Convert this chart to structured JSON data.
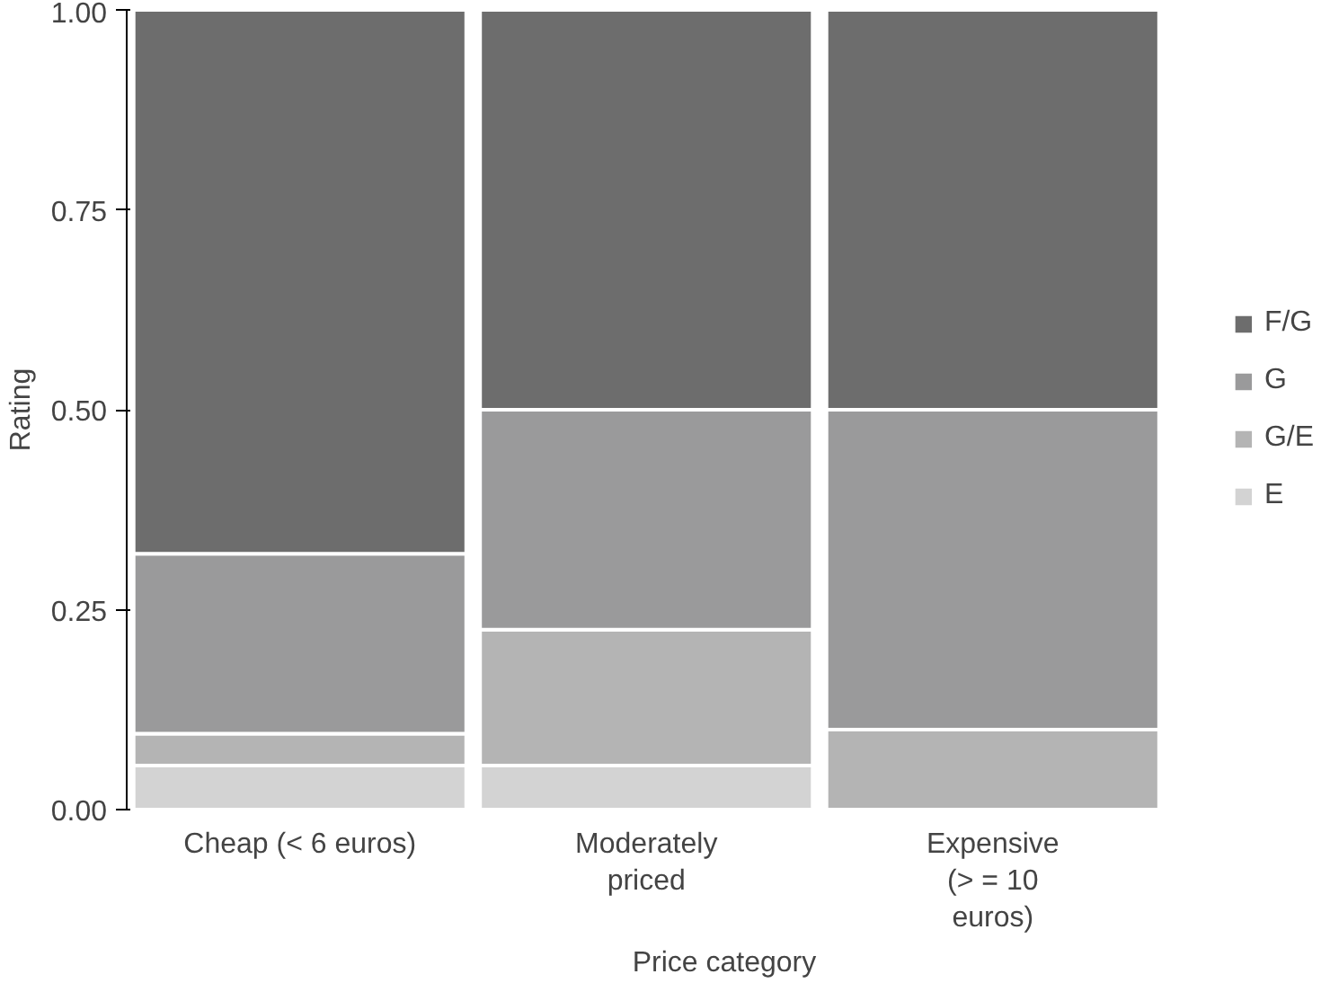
{
  "chart_data": {
    "type": "bar",
    "stacked": true,
    "xlabel": "Price category",
    "ylabel": "Rating",
    "categories": [
      "Cheap (< 6 euros)",
      "Moderately\npriced",
      "Expensive\n(> = 10\neuros)"
    ],
    "series": [
      {
        "name": "E",
        "color": "#d3d3d3",
        "values": [
          0.055,
          0.055,
          0
        ]
      },
      {
        "name": "G/E",
        "color": "#b4b4b4",
        "values": [
          0.04,
          0.17,
          0.1
        ]
      },
      {
        "name": "G",
        "color": "#9a9a9b",
        "values": [
          0.225,
          0.275,
          0.4
        ]
      },
      {
        "name": "F/G",
        "color": "#6d6d6d",
        "values": [
          0.68,
          0.5,
          0.5
        ]
      }
    ],
    "ylim": [
      0,
      1
    ],
    "yticks": [
      {
        "value": 0,
        "label": "0.00"
      },
      {
        "value": 0.25,
        "label": "0.25"
      },
      {
        "value": 0.5,
        "label": "0.50"
      },
      {
        "value": 0.75,
        "label": "0.75"
      },
      {
        "value": 1,
        "label": "1.00"
      }
    ],
    "legend": "right"
  }
}
